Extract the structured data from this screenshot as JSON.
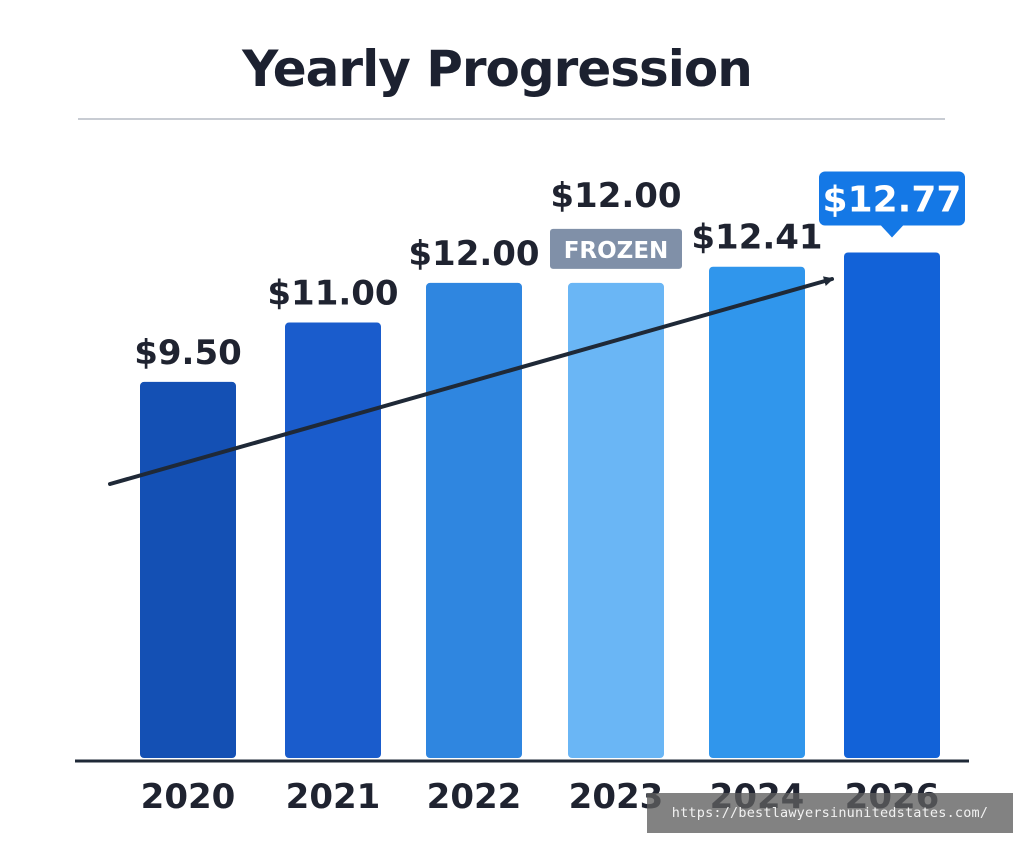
{
  "chart_data": {
    "type": "bar",
    "title": "Yearly Progression",
    "categories": [
      "2020",
      "2021",
      "2022",
      "2023",
      "2024",
      "2026"
    ],
    "values": [
      9.5,
      11.0,
      12.0,
      12.0,
      12.41,
      12.77
    ],
    "value_labels": [
      "$9.50",
      "$11.00",
      "$12.00",
      "$12.00",
      "$12.41",
      "$12.77"
    ],
    "xlabel": "",
    "ylabel": "",
    "ylim": [
      0,
      14.5
    ],
    "grid": false,
    "legend": "none",
    "annotations": [
      {
        "category": "2023",
        "text": "FROZEN"
      },
      {
        "category": "2026",
        "text": "$12.77",
        "style": "callout"
      }
    ],
    "trend_arrow": true,
    "colors": {
      "bars": [
        "#1450b4",
        "#1a5ccc",
        "#2f86e0",
        "#6ab6f5",
        "#3096ec",
        "#1262d8"
      ],
      "callout": "#1478e6",
      "frozen_badge": "#8090a8",
      "axis": "#1f2937",
      "text": "#1f2330",
      "title": "#1c2130",
      "divider": "#c8ccd3"
    }
  },
  "watermark": "https://bestlawyersinunitedstates.com/"
}
